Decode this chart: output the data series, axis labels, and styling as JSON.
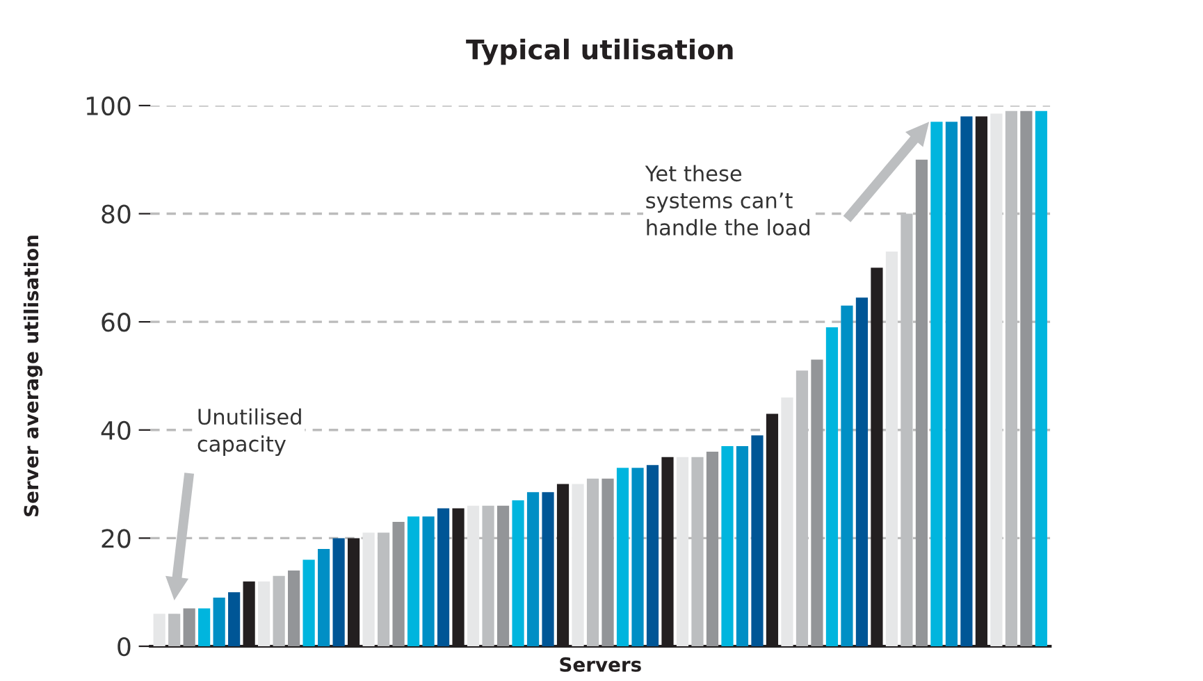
{
  "chart_data": {
    "type": "bar",
    "title": "Typical utilisation",
    "xlabel": "Servers",
    "ylabel": "Server average utilisation",
    "categories": [
      null,
      null,
      null,
      null,
      null,
      null,
      null,
      null,
      null,
      null,
      null,
      null,
      null,
      null,
      null,
      null,
      null,
      null,
      null,
      null,
      null,
      null,
      null,
      null,
      null,
      null,
      null,
      null,
      null,
      null,
      null,
      null,
      null,
      null,
      null,
      null,
      null,
      null,
      null,
      null,
      null,
      null,
      null,
      null,
      null,
      null,
      null,
      null,
      null,
      null,
      null,
      null,
      null,
      null,
      null,
      null,
      null,
      null,
      null,
      null
    ],
    "values": [
      6,
      6,
      7,
      7,
      9,
      10,
      12,
      12,
      13,
      14,
      16,
      18,
      20,
      20,
      21,
      21,
      23,
      24,
      24,
      25.5,
      25.5,
      26,
      26,
      26,
      27,
      28.5,
      28.5,
      30,
      30,
      31,
      31,
      33,
      33,
      33.5,
      35,
      35,
      35,
      36,
      37,
      37,
      39,
      43,
      46,
      51,
      53,
      59,
      63,
      64.5,
      70,
      73,
      80,
      90,
      97,
      97,
      98,
      98,
      98.5,
      99,
      99,
      99
    ],
    "colors": [
      "#e6e7e8",
      "#bcbec0",
      "#939598",
      "#00b5de",
      "#008fc5",
      "#005696",
      "#231f20",
      "#e6e7e8",
      "#bcbec0",
      "#939598",
      "#00b5de",
      "#008fc5",
      "#005696",
      "#231f20",
      "#e6e7e8",
      "#bcbec0",
      "#939598",
      "#00b5de",
      "#008fc5",
      "#005696",
      "#231f20",
      "#e6e7e8",
      "#bcbec0",
      "#939598",
      "#00b5de",
      "#008fc5",
      "#005696",
      "#231f20",
      "#e6e7e8",
      "#bcbec0",
      "#939598",
      "#00b5de",
      "#008fc5",
      "#005696",
      "#231f20",
      "#e6e7e8",
      "#bcbec0",
      "#939598",
      "#00b5de",
      "#008fc5",
      "#005696",
      "#231f20",
      "#e6e7e8",
      "#bcbec0",
      "#939598",
      "#00b5de",
      "#008fc5",
      "#005696",
      "#231f20",
      "#e6e7e8",
      "#bcbec0",
      "#939598",
      "#00b5de",
      "#008fc5",
      "#005696",
      "#231f20",
      "#e6e7e8",
      "#bcbec0",
      "#939598",
      "#00b5de"
    ],
    "ylim": [
      0,
      100
    ],
    "yticks": [
      0,
      20,
      40,
      60,
      80,
      100
    ],
    "grid": "y",
    "annotations": [
      "Unutilised\ncapacity",
      "Yet these\nsystems can’t\nhandle the load"
    ]
  }
}
